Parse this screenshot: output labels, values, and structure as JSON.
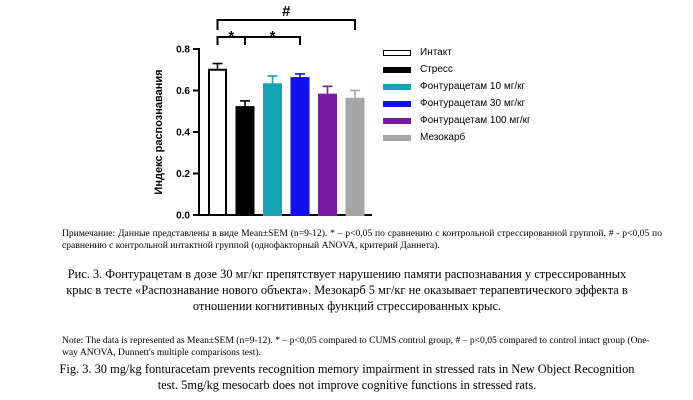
{
  "chart_data": {
    "type": "bar",
    "ylabel": "Индекс распознавания",
    "ylim": [
      0,
      0.8
    ],
    "yticks": [
      "0.0",
      "0.2",
      "0.4",
      "0.6",
      "0.8"
    ],
    "grid": false,
    "legend_position": "right",
    "series": [
      {
        "name": "Интакт",
        "value": 0.7,
        "error": 0.03,
        "color": "#ffffff",
        "outline": "#000000"
      },
      {
        "name": "Стресс",
        "value": 0.52,
        "error": 0.03,
        "color": "#000000",
        "outline": "#000000"
      },
      {
        "name": "Фонтурацетам 10 мг/кг",
        "value": 0.63,
        "error": 0.04,
        "color": "#17a2b8",
        "outline": "#17a2b8"
      },
      {
        "name": "Фонтурацетам 30 мг/кг",
        "value": 0.66,
        "error": 0.02,
        "color": "#1010ee",
        "outline": "#1010ee"
      },
      {
        "name": "Фонтурацетам 100 мг/кг",
        "value": 0.58,
        "error": 0.04,
        "color": "#7a1aa0",
        "outline": "#7a1aa0"
      },
      {
        "name": "Мезокарб",
        "value": 0.56,
        "error": 0.04,
        "color": "#a6a6a6",
        "outline": "#a6a6a6"
      }
    ],
    "annotations": [
      {
        "label": "#",
        "from": 0,
        "to": 5
      },
      {
        "label": "*",
        "from": 0,
        "to": 1
      },
      {
        "label": "*",
        "from": 1,
        "to": 3
      }
    ]
  },
  "text": {
    "note_ru": "Примечание: Данные представлены в виде Mean±SEM (n=9-12). * – p<0,05 по сравнению с контрольной стрессированной группой, # - p<0,05 по сравнению с контрольной интактной группой (однофакторный ANOVA, критерий Даннета).",
    "caption_ru": "Рис. 3. Фонтурацетам в дозе 30 мг/кг препятствует нарушению памяти распознавания у стрессированных крыс в тесте «Распознавание нового объекта». Мезокарб 5 мг/кг не оказывает терапевтического эффекта в отношении когнитивных функций стрессированных крыс.",
    "note_en": "Note: The data is represented as Mean±SEM (n=9-12). * – p<0,05 compared to CUMS control group, # – p<0,05 compared to control intact group (One-way ANOVA, Dunnett's multiple comparisons test).",
    "caption_en": "Fig. 3. 30 mg/kg fonturacetam prevents recognition memory impairment in stressed rats in New Object Recognition test. 5mg/kg mesocarb does not improve cognitive functions in stressed rats."
  }
}
